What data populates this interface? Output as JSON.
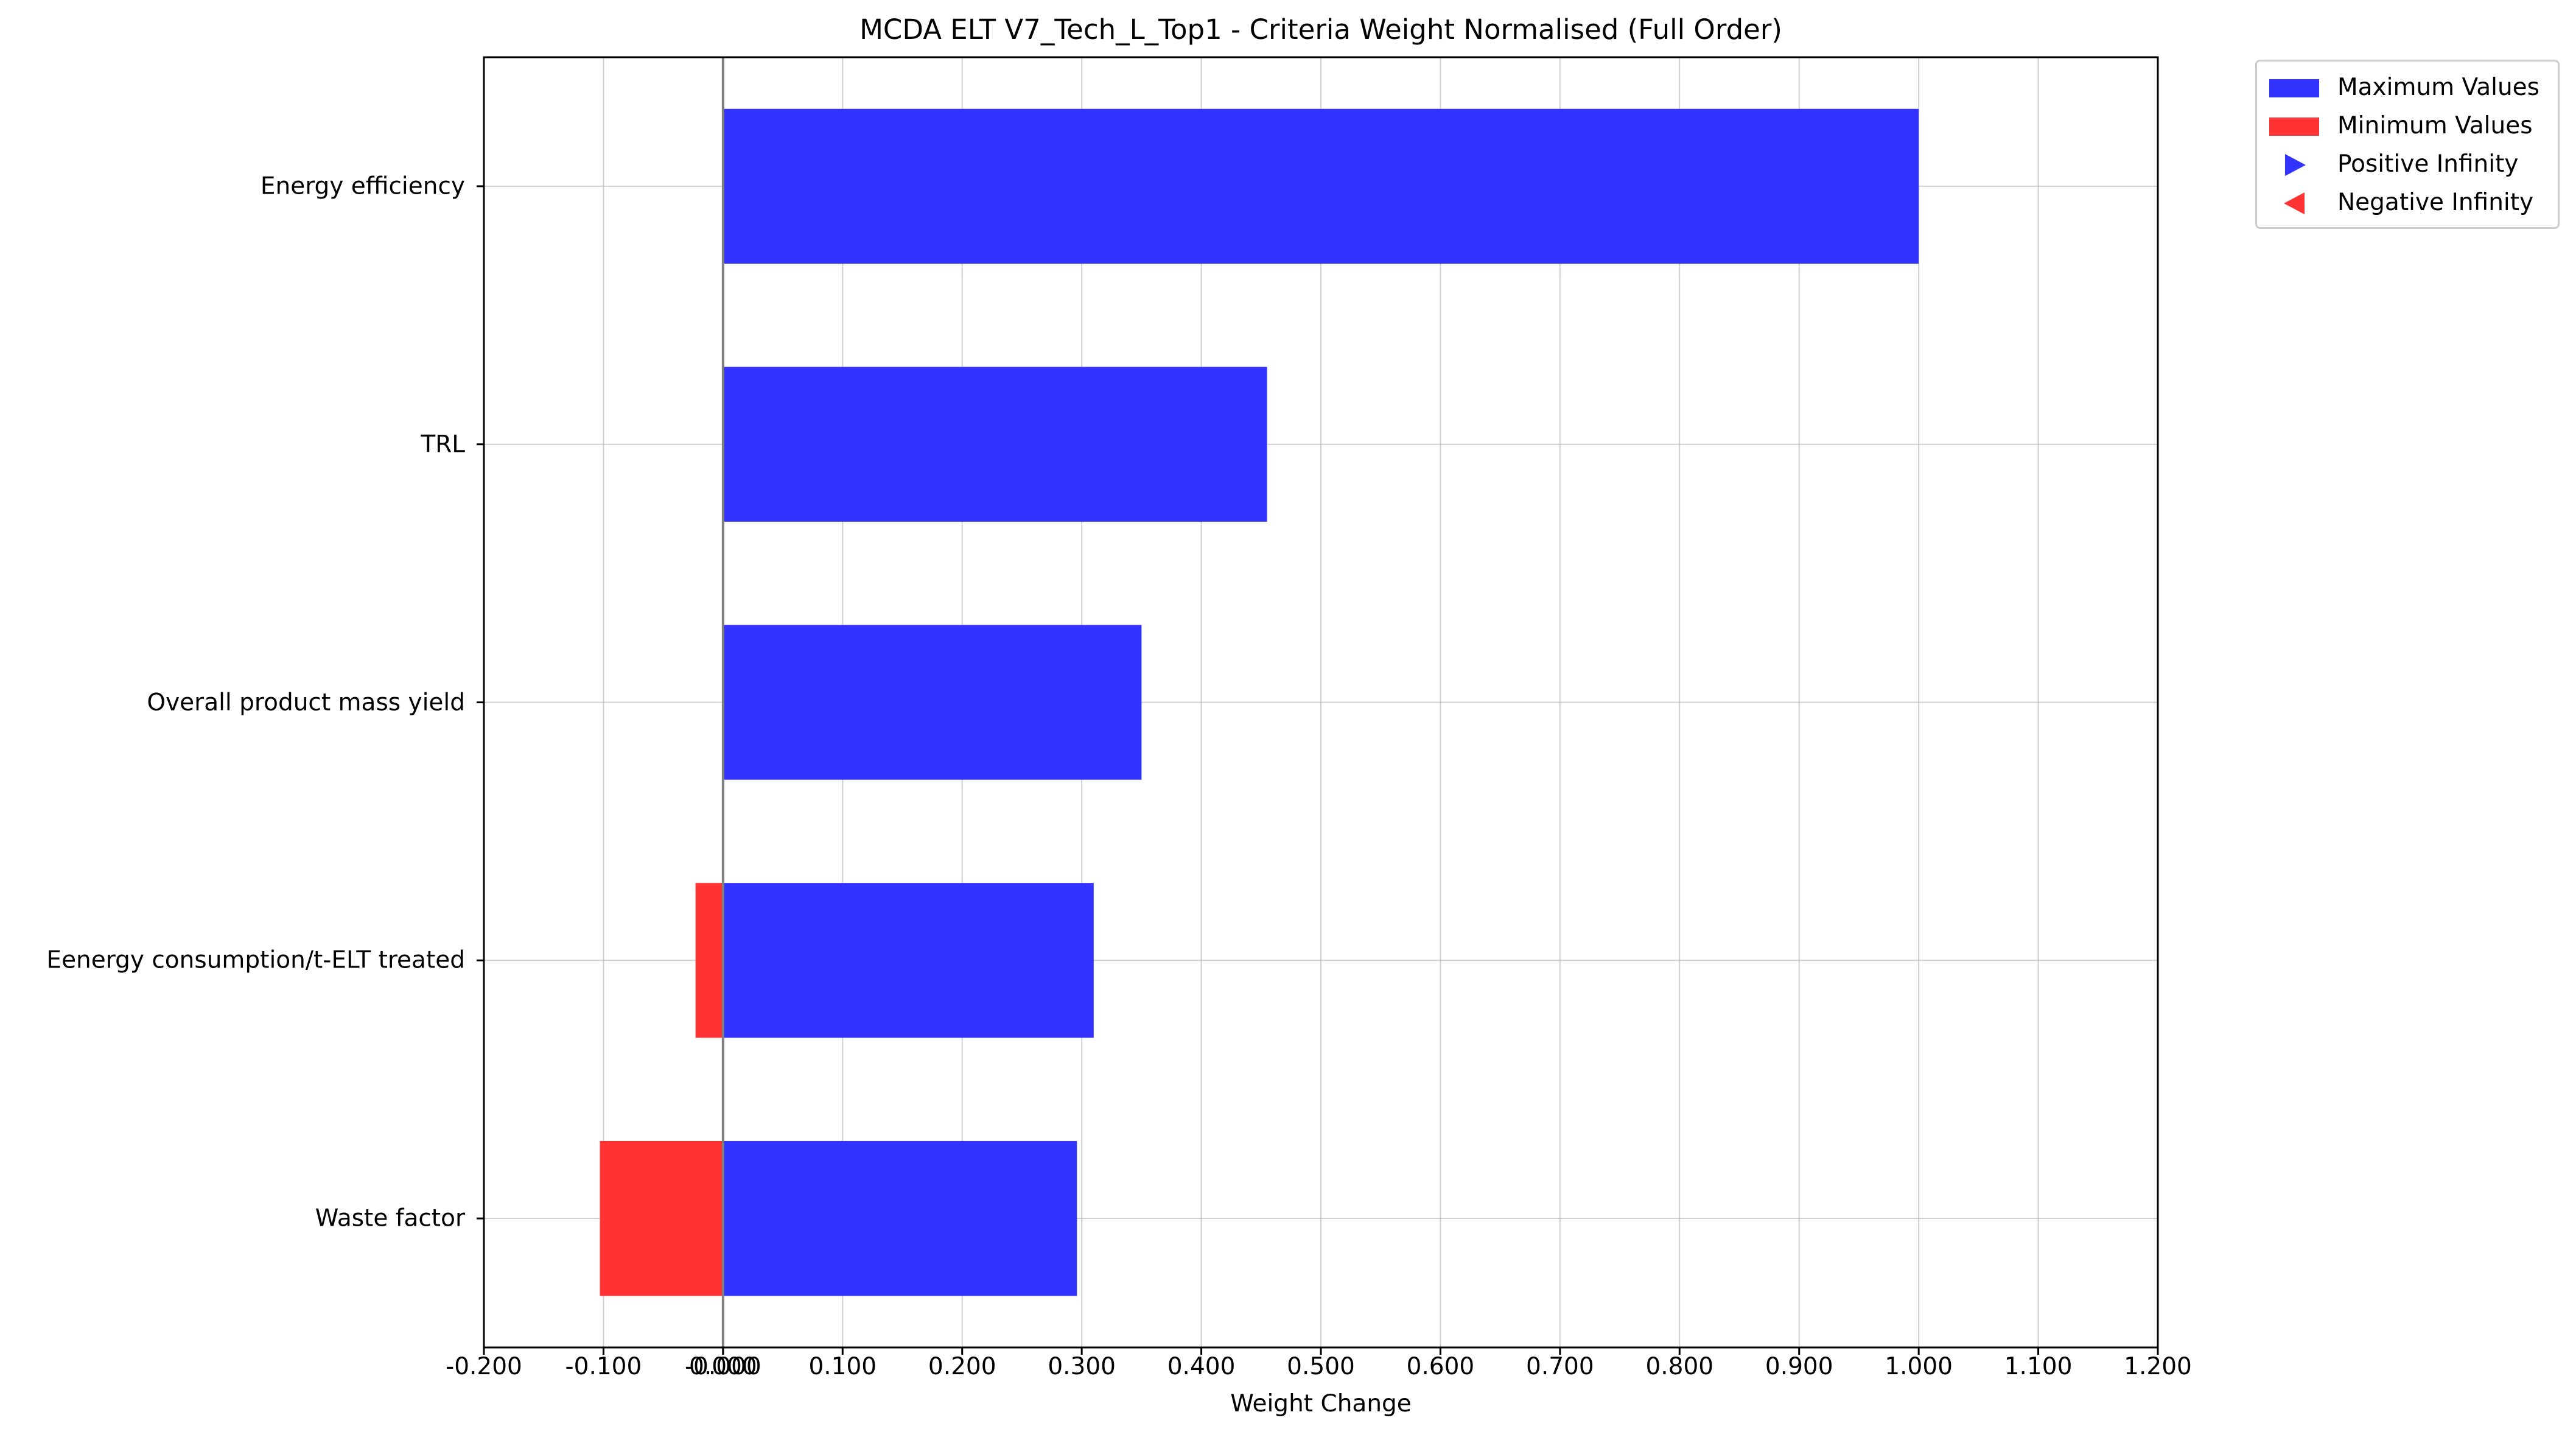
{
  "chart_data": {
    "type": "bar",
    "orientation": "horizontal",
    "title": "MCDA ELT V7_Tech_L_Top1 - Criteria Weight Normalised (Full Order)",
    "xlabel": "Weight Change",
    "ylabel": "",
    "xlim": [
      -0.2,
      1.2
    ],
    "grid": true,
    "legend_position": "outside top-right",
    "categories": [
      "Energy efficiency",
      "TRL",
      "Overall product mass yield",
      "Eenergy consumption/t-ELT treated",
      "Waste factor"
    ],
    "series": [
      {
        "name": "Maximum Values",
        "color": "#3333ff",
        "values": [
          1.0,
          0.455,
          0.35,
          0.31,
          0.296
        ]
      },
      {
        "name": "Minimum Values",
        "color": "#ff3333",
        "values": [
          0.0,
          0.0,
          0.0,
          -0.023,
          -0.103
        ]
      }
    ],
    "markers": [
      {
        "name": "Positive Infinity",
        "symbol": "triangle-right",
        "color": "#3333ff"
      },
      {
        "name": "Negative Infinity",
        "symbol": "triangle-left",
        "color": "#ff3333"
      }
    ],
    "xticks": [
      "-0.200",
      "-0.100",
      "-0.000",
      "0.000",
      "0.100",
      "0.200",
      "0.300",
      "0.400",
      "0.500",
      "0.600",
      "0.700",
      "0.800",
      "0.900",
      "1.000",
      "1.100",
      "1.200"
    ],
    "xtick_values": [
      -0.2,
      -0.1,
      -0.0,
      0.0,
      0.1,
      0.2,
      0.3,
      0.4,
      0.5,
      0.6,
      0.7,
      0.8,
      0.9,
      1.0,
      1.1,
      1.2
    ]
  }
}
